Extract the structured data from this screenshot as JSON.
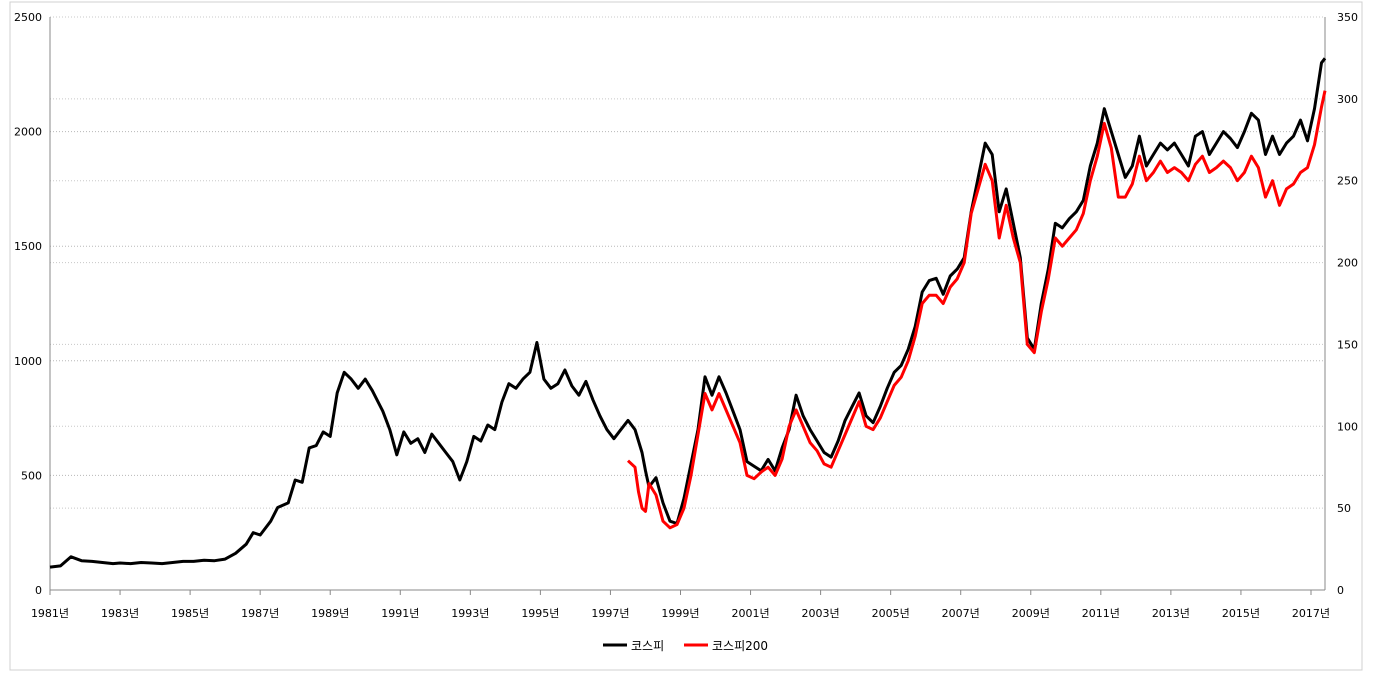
{
  "chart_data": {
    "type": "line",
    "title": "",
    "x_ticks": [
      "1981년",
      "1983년",
      "1985년",
      "1987년",
      "1989년",
      "1991년",
      "1993년",
      "1995년",
      "1997년",
      "1999년",
      "2001년",
      "2003년",
      "2005년",
      "2007년",
      "2009년",
      "2011년",
      "2013년",
      "2015년",
      "2017년"
    ],
    "x_range": [
      1981.0,
      2017.4
    ],
    "y_left": {
      "ticks": [
        0,
        500,
        1000,
        1500,
        2000,
        2500
      ],
      "range": [
        0,
        2500
      ]
    },
    "y_right": {
      "ticks": [
        0,
        50,
        100,
        150,
        200,
        250,
        300,
        350
      ],
      "range": [
        0,
        350
      ]
    },
    "grid": true,
    "legend_position": "bottom",
    "series": [
      {
        "name": "코스피",
        "color": "#000000",
        "axis": "left",
        "points": [
          [
            1981.0,
            100
          ],
          [
            1981.3,
            105
          ],
          [
            1981.6,
            145
          ],
          [
            1981.9,
            128
          ],
          [
            1982.2,
            125
          ],
          [
            1982.5,
            120
          ],
          [
            1982.8,
            115
          ],
          [
            1983.0,
            118
          ],
          [
            1983.3,
            115
          ],
          [
            1983.6,
            120
          ],
          [
            1983.9,
            118
          ],
          [
            1984.2,
            115
          ],
          [
            1984.5,
            120
          ],
          [
            1984.8,
            125
          ],
          [
            1985.1,
            125
          ],
          [
            1985.4,
            130
          ],
          [
            1985.7,
            128
          ],
          [
            1986.0,
            135
          ],
          [
            1986.3,
            160
          ],
          [
            1986.6,
            200
          ],
          [
            1986.8,
            250
          ],
          [
            1987.0,
            240
          ],
          [
            1987.3,
            300
          ],
          [
            1987.5,
            360
          ],
          [
            1987.8,
            380
          ],
          [
            1988.0,
            480
          ],
          [
            1988.2,
            470
          ],
          [
            1988.4,
            620
          ],
          [
            1988.6,
            630
          ],
          [
            1988.8,
            690
          ],
          [
            1989.0,
            670
          ],
          [
            1989.2,
            860
          ],
          [
            1989.4,
            950
          ],
          [
            1989.6,
            920
          ],
          [
            1989.8,
            880
          ],
          [
            1990.0,
            920
          ],
          [
            1990.2,
            870
          ],
          [
            1990.5,
            780
          ],
          [
            1990.7,
            700
          ],
          [
            1990.9,
            590
          ],
          [
            1991.1,
            690
          ],
          [
            1991.3,
            640
          ],
          [
            1991.5,
            660
          ],
          [
            1991.7,
            600
          ],
          [
            1991.9,
            680
          ],
          [
            1992.1,
            640
          ],
          [
            1992.3,
            600
          ],
          [
            1992.5,
            560
          ],
          [
            1992.7,
            480
          ],
          [
            1992.9,
            560
          ],
          [
            1993.1,
            670
          ],
          [
            1993.3,
            650
          ],
          [
            1993.5,
            720
          ],
          [
            1993.7,
            700
          ],
          [
            1993.9,
            820
          ],
          [
            1994.1,
            900
          ],
          [
            1994.3,
            880
          ],
          [
            1994.5,
            920
          ],
          [
            1994.7,
            950
          ],
          [
            1994.9,
            1080
          ],
          [
            1995.1,
            920
          ],
          [
            1995.3,
            880
          ],
          [
            1995.5,
            900
          ],
          [
            1995.7,
            960
          ],
          [
            1995.9,
            890
          ],
          [
            1996.1,
            850
          ],
          [
            1996.3,
            910
          ],
          [
            1996.5,
            830
          ],
          [
            1996.7,
            760
          ],
          [
            1996.9,
            700
          ],
          [
            1997.1,
            660
          ],
          [
            1997.3,
            700
          ],
          [
            1997.5,
            740
          ],
          [
            1997.7,
            700
          ],
          [
            1997.9,
            600
          ],
          [
            1998.0,
            520
          ],
          [
            1998.1,
            450
          ],
          [
            1998.3,
            490
          ],
          [
            1998.5,
            380
          ],
          [
            1998.7,
            300
          ],
          [
            1998.9,
            290
          ],
          [
            1999.1,
            400
          ],
          [
            1999.3,
            550
          ],
          [
            1999.5,
            700
          ],
          [
            1999.7,
            930
          ],
          [
            1999.9,
            850
          ],
          [
            2000.1,
            930
          ],
          [
            2000.3,
            860
          ],
          [
            2000.5,
            780
          ],
          [
            2000.7,
            700
          ],
          [
            2000.9,
            560
          ],
          [
            2001.1,
            540
          ],
          [
            2001.3,
            520
          ],
          [
            2001.5,
            570
          ],
          [
            2001.7,
            520
          ],
          [
            2001.9,
            620
          ],
          [
            2002.1,
            700
          ],
          [
            2002.3,
            850
          ],
          [
            2002.5,
            760
          ],
          [
            2002.7,
            700
          ],
          [
            2002.9,
            650
          ],
          [
            2003.1,
            600
          ],
          [
            2003.3,
            580
          ],
          [
            2003.5,
            650
          ],
          [
            2003.7,
            740
          ],
          [
            2003.9,
            800
          ],
          [
            2004.1,
            860
          ],
          [
            2004.3,
            760
          ],
          [
            2004.5,
            730
          ],
          [
            2004.7,
            800
          ],
          [
            2004.9,
            880
          ],
          [
            2005.1,
            950
          ],
          [
            2005.3,
            980
          ],
          [
            2005.5,
            1050
          ],
          [
            2005.7,
            1150
          ],
          [
            2005.9,
            1300
          ],
          [
            2006.1,
            1350
          ],
          [
            2006.3,
            1360
          ],
          [
            2006.5,
            1290
          ],
          [
            2006.7,
            1370
          ],
          [
            2006.9,
            1400
          ],
          [
            2007.1,
            1450
          ],
          [
            2007.3,
            1650
          ],
          [
            2007.5,
            1800
          ],
          [
            2007.7,
            1950
          ],
          [
            2007.9,
            1900
          ],
          [
            2008.1,
            1650
          ],
          [
            2008.3,
            1750
          ],
          [
            2008.5,
            1600
          ],
          [
            2008.7,
            1450
          ],
          [
            2008.9,
            1100
          ],
          [
            2009.1,
            1050
          ],
          [
            2009.3,
            1250
          ],
          [
            2009.5,
            1400
          ],
          [
            2009.7,
            1600
          ],
          [
            2009.9,
            1580
          ],
          [
            2010.1,
            1620
          ],
          [
            2010.3,
            1650
          ],
          [
            2010.5,
            1700
          ],
          [
            2010.7,
            1850
          ],
          [
            2010.9,
            1950
          ],
          [
            2011.1,
            2100
          ],
          [
            2011.3,
            2000
          ],
          [
            2011.5,
            1900
          ],
          [
            2011.7,
            1800
          ],
          [
            2011.9,
            1850
          ],
          [
            2012.1,
            1980
          ],
          [
            2012.3,
            1850
          ],
          [
            2012.5,
            1900
          ],
          [
            2012.7,
            1950
          ],
          [
            2012.9,
            1920
          ],
          [
            2013.1,
            1950
          ],
          [
            2013.3,
            1900
          ],
          [
            2013.5,
            1850
          ],
          [
            2013.7,
            1980
          ],
          [
            2013.9,
            2000
          ],
          [
            2014.1,
            1900
          ],
          [
            2014.3,
            1950
          ],
          [
            2014.5,
            2000
          ],
          [
            2014.7,
            1970
          ],
          [
            2014.9,
            1930
          ],
          [
            2015.1,
            2000
          ],
          [
            2015.3,
            2080
          ],
          [
            2015.5,
            2050
          ],
          [
            2015.7,
            1900
          ],
          [
            2015.9,
            1980
          ],
          [
            2016.1,
            1900
          ],
          [
            2016.3,
            1950
          ],
          [
            2016.5,
            1980
          ],
          [
            2016.7,
            2050
          ],
          [
            2016.9,
            1960
          ],
          [
            2017.1,
            2100
          ],
          [
            2017.3,
            2300
          ],
          [
            2017.4,
            2320
          ]
        ]
      },
      {
        "name": "코스피200",
        "color": "#ff0000",
        "axis": "right",
        "points": [
          [
            1997.5,
            79
          ],
          [
            1997.7,
            75
          ],
          [
            1997.8,
            60
          ],
          [
            1997.9,
            50
          ],
          [
            1998.0,
            48
          ],
          [
            1998.1,
            65
          ],
          [
            1998.3,
            58
          ],
          [
            1998.5,
            42
          ],
          [
            1998.7,
            38
          ],
          [
            1998.9,
            40
          ],
          [
            1999.1,
            50
          ],
          [
            1999.3,
            70
          ],
          [
            1999.5,
            95
          ],
          [
            1999.7,
            120
          ],
          [
            1999.9,
            110
          ],
          [
            2000.1,
            120
          ],
          [
            2000.3,
            110
          ],
          [
            2000.5,
            100
          ],
          [
            2000.7,
            90
          ],
          [
            2000.9,
            70
          ],
          [
            2001.1,
            68
          ],
          [
            2001.3,
            72
          ],
          [
            2001.5,
            75
          ],
          [
            2001.7,
            70
          ],
          [
            2001.9,
            80
          ],
          [
            2002.1,
            100
          ],
          [
            2002.3,
            110
          ],
          [
            2002.5,
            100
          ],
          [
            2002.7,
            90
          ],
          [
            2002.9,
            85
          ],
          [
            2003.1,
            77
          ],
          [
            2003.3,
            75
          ],
          [
            2003.5,
            85
          ],
          [
            2003.7,
            95
          ],
          [
            2003.9,
            105
          ],
          [
            2004.1,
            115
          ],
          [
            2004.3,
            100
          ],
          [
            2004.5,
            98
          ],
          [
            2004.7,
            105
          ],
          [
            2004.9,
            115
          ],
          [
            2005.1,
            125
          ],
          [
            2005.3,
            130
          ],
          [
            2005.5,
            140
          ],
          [
            2005.7,
            155
          ],
          [
            2005.9,
            175
          ],
          [
            2006.1,
            180
          ],
          [
            2006.3,
            180
          ],
          [
            2006.5,
            175
          ],
          [
            2006.7,
            185
          ],
          [
            2006.9,
            190
          ],
          [
            2007.1,
            200
          ],
          [
            2007.3,
            230
          ],
          [
            2007.5,
            245
          ],
          [
            2007.7,
            260
          ],
          [
            2007.9,
            250
          ],
          [
            2008.1,
            215
          ],
          [
            2008.3,
            235
          ],
          [
            2008.5,
            215
          ],
          [
            2008.7,
            200
          ],
          [
            2008.9,
            150
          ],
          [
            2009.1,
            145
          ],
          [
            2009.3,
            170
          ],
          [
            2009.5,
            190
          ],
          [
            2009.7,
            215
          ],
          [
            2009.9,
            210
          ],
          [
            2010.1,
            215
          ],
          [
            2010.3,
            220
          ],
          [
            2010.5,
            230
          ],
          [
            2010.7,
            250
          ],
          [
            2010.9,
            265
          ],
          [
            2011.1,
            285
          ],
          [
            2011.3,
            270
          ],
          [
            2011.5,
            240
          ],
          [
            2011.7,
            240
          ],
          [
            2011.9,
            248
          ],
          [
            2012.1,
            265
          ],
          [
            2012.3,
            250
          ],
          [
            2012.5,
            255
          ],
          [
            2012.7,
            262
          ],
          [
            2012.9,
            255
          ],
          [
            2013.1,
            258
          ],
          [
            2013.3,
            255
          ],
          [
            2013.5,
            250
          ],
          [
            2013.7,
            260
          ],
          [
            2013.9,
            265
          ],
          [
            2014.1,
            255
          ],
          [
            2014.3,
            258
          ],
          [
            2014.5,
            262
          ],
          [
            2014.7,
            258
          ],
          [
            2014.9,
            250
          ],
          [
            2015.1,
            255
          ],
          [
            2015.3,
            265
          ],
          [
            2015.5,
            258
          ],
          [
            2015.7,
            240
          ],
          [
            2015.9,
            250
          ],
          [
            2016.1,
            235
          ],
          [
            2016.3,
            245
          ],
          [
            2016.5,
            248
          ],
          [
            2016.7,
            255
          ],
          [
            2016.9,
            258
          ],
          [
            2017.1,
            272
          ],
          [
            2017.3,
            295
          ],
          [
            2017.4,
            305
          ]
        ]
      }
    ]
  }
}
